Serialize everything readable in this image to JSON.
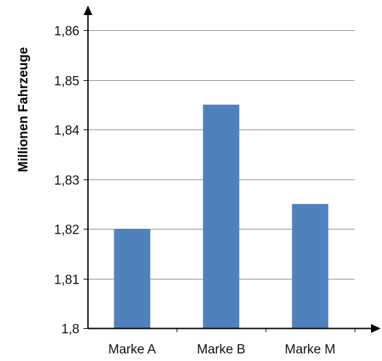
{
  "chart_data": {
    "type": "bar",
    "categories": [
      "Marke A",
      "Marke B",
      "Marke M"
    ],
    "values": [
      1.82,
      1.845,
      1.825
    ],
    "title": "",
    "xlabel": "",
    "ylabel": "Millionen Fahrzeuge",
    "ylim": [
      1.8,
      1.86
    ],
    "yticks": [
      1.8,
      1.81,
      1.82,
      1.83,
      1.84,
      1.85,
      1.86
    ],
    "ytick_labels": [
      "1,8",
      "1,81",
      "1,82",
      "1,83",
      "1,84",
      "1,85",
      "1,86"
    ],
    "grid": true,
    "legend": "none",
    "bar_color": "#4f81bd",
    "grid_color": "#8c8c8c",
    "axis_color": "#000000"
  }
}
